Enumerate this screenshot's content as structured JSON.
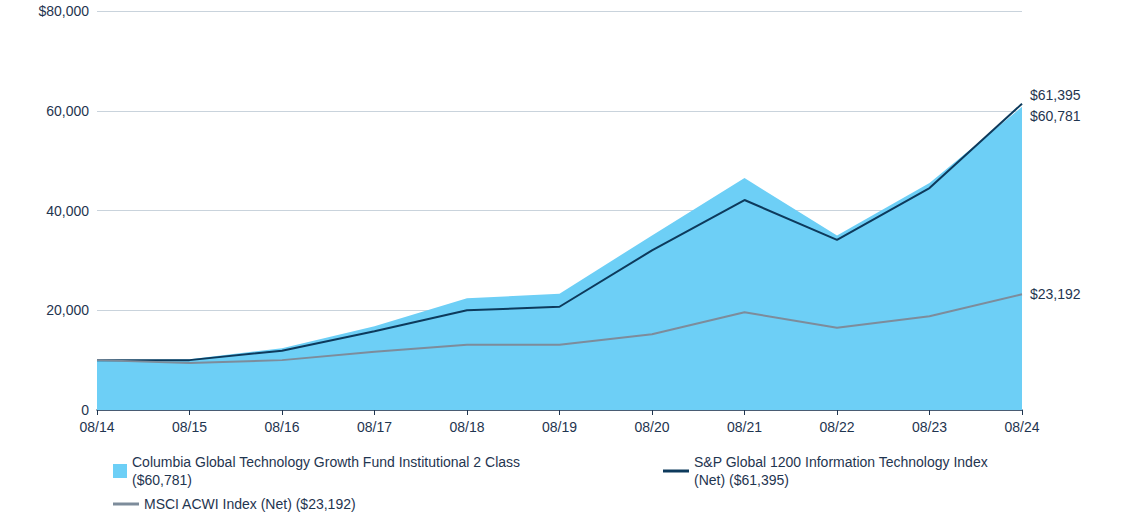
{
  "chart_data": {
    "type": "line",
    "categories": [
      "08/14",
      "08/15",
      "08/16",
      "08/17",
      "08/18",
      "08/19",
      "08/20",
      "08/21",
      "08/22",
      "08/23",
      "08/24"
    ],
    "series": [
      {
        "name": "Columbia Global Technology Growth Fund Institutional 2 Class ($60,781)",
        "type": "area",
        "color": "#6dcff6",
        "values": [
          10000,
          10200,
          12400,
          16800,
          22400,
          23300,
          35000,
          46500,
          35000,
          45500,
          60781
        ]
      },
      {
        "name": "S&P Global 1200 Information Technology Index (Net) ($61,395)",
        "type": "line",
        "color": "#0d3a5c",
        "values": [
          10000,
          10000,
          11900,
          15800,
          20000,
          20700,
          32000,
          42100,
          34100,
          44500,
          61395
        ]
      },
      {
        "name": "MSCI ACWI Index (Net) ($23,192)",
        "type": "line",
        "color": "#7d8c9b",
        "values": [
          10000,
          9400,
          10000,
          11700,
          13100,
          13100,
          15200,
          19600,
          16500,
          18800,
          23192
        ]
      }
    ],
    "ylim": [
      0,
      80000
    ],
    "yticks": [
      0,
      {
        "value": 20000,
        "label": "20,000"
      },
      {
        "value": 40000,
        "label": "40,000"
      },
      {
        "value": 60000,
        "label": "60,000"
      },
      {
        "value": 80000,
        "label": "$80,000"
      }
    ],
    "annotations": [
      {
        "x": "08/24",
        "y": 61395,
        "text": "$61,395"
      },
      {
        "x": "08/24",
        "y": 60781,
        "text": "$60,781"
      },
      {
        "x": "08/24",
        "y": 23192,
        "text": "$23,192"
      }
    ],
    "grid": true,
    "legend": "bottom"
  }
}
